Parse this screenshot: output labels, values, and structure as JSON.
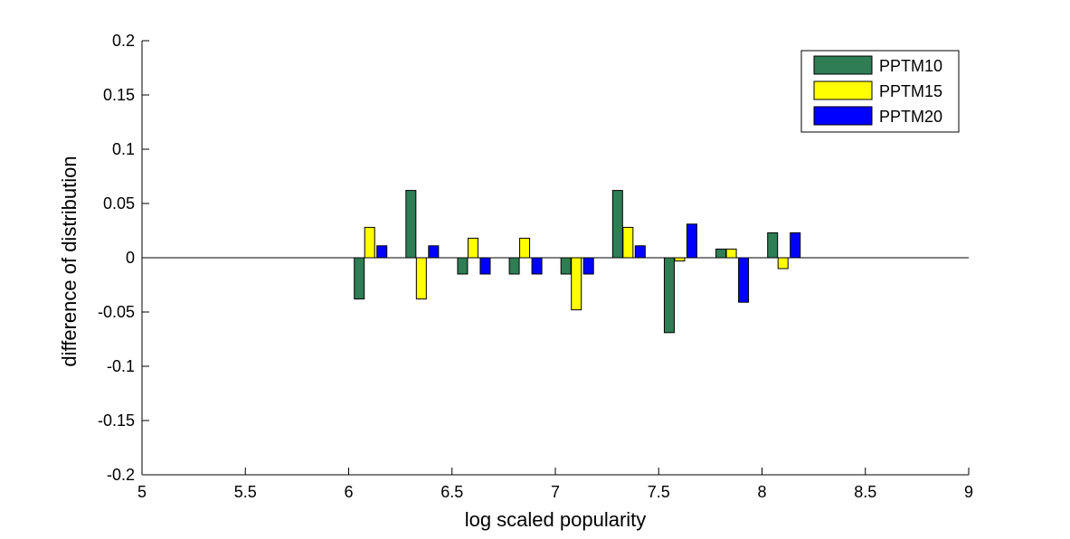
{
  "chart_data": {
    "type": "bar",
    "title": "",
    "xlabel": "log scaled popularity",
    "ylabel": "difference of distribution",
    "xlim": [
      5,
      9
    ],
    "ylim": [
      -0.2,
      0.2
    ],
    "x_ticks": [
      {
        "value": 5,
        "label": "5"
      },
      {
        "value": 5.5,
        "label": "5.5"
      },
      {
        "value": 6,
        "label": "6"
      },
      {
        "value": 6.5,
        "label": "6.5"
      },
      {
        "value": 7,
        "label": "7"
      },
      {
        "value": 7.5,
        "label": "7.5"
      },
      {
        "value": 8,
        "label": "8"
      },
      {
        "value": 8.5,
        "label": "8.5"
      },
      {
        "value": 9,
        "label": "9"
      }
    ],
    "y_ticks": [
      {
        "value": 0.2,
        "label": "0.2"
      },
      {
        "value": 0.15,
        "label": "0.15"
      },
      {
        "value": 0.1,
        "label": "0.1"
      },
      {
        "value": 0.05,
        "label": "0.05"
      },
      {
        "value": 0,
        "label": "0"
      },
      {
        "value": -0.05,
        "label": "-0.05"
      },
      {
        "value": -0.1,
        "label": "-0.1"
      },
      {
        "value": -0.15,
        "label": "-0.15"
      },
      {
        "value": -0.2,
        "label": "-0.2"
      }
    ],
    "grid": false,
    "legend_position": "top-right",
    "bar_groups_x": [
      6.13,
      6.38,
      6.63,
      6.88,
      7.13,
      7.38,
      7.63,
      7.88,
      8.13
    ],
    "series": [
      {
        "name": "PPTM10",
        "color": "#2e7d55",
        "values": [
          -0.038,
          0.062,
          -0.015,
          -0.015,
          -0.015,
          0.062,
          -0.069,
          0.008,
          0.023
        ]
      },
      {
        "name": "PPTM15",
        "color": "#ffff00",
        "values": [
          0.028,
          -0.038,
          0.018,
          0.018,
          -0.048,
          0.028,
          -0.003,
          0.008,
          -0.01
        ]
      },
      {
        "name": "PPTM20",
        "color": "#0000ff",
        "values": [
          0.011,
          0.011,
          -0.015,
          -0.015,
          -0.015,
          0.011,
          0.031,
          -0.041,
          0.023
        ]
      }
    ]
  }
}
